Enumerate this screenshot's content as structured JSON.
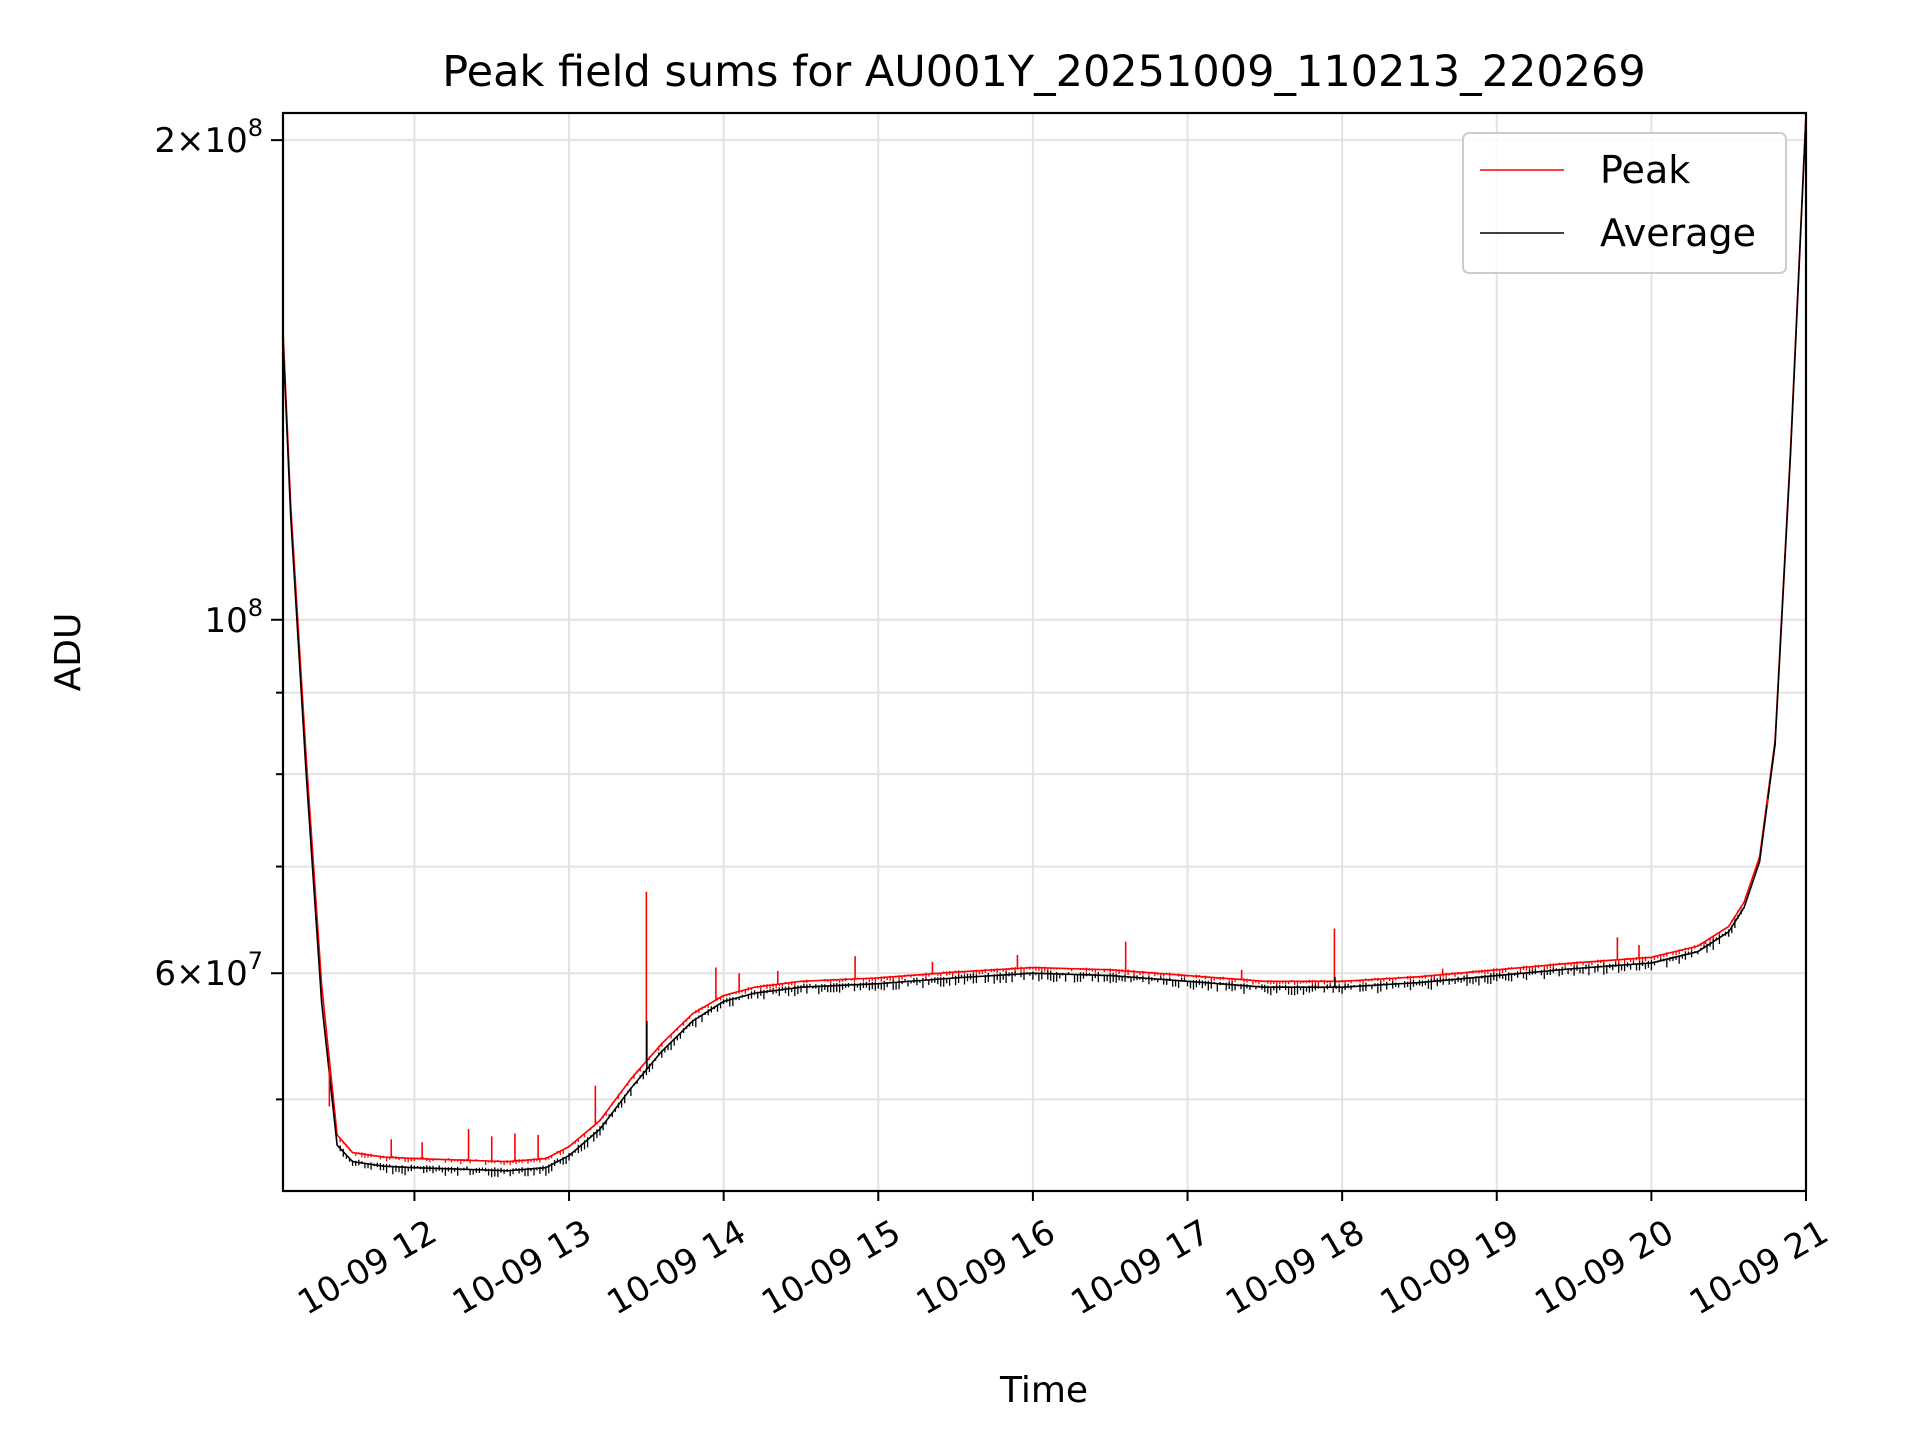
{
  "chart_data": {
    "type": "line",
    "title": "Peak field sums for AU001Y_20251009_110213_220269",
    "xlabel": "Time",
    "ylabel": "ADU",
    "yscale": "log",
    "x_units": "hours since 10-09 00:00",
    "xlim": [
      11.15,
      21.0
    ],
    "ylim": [
      43800000,
      208000000
    ],
    "grid": true,
    "legend_position": "top-right",
    "x_ticks": [
      {
        "value": 12,
        "label": "10-09 12"
      },
      {
        "value": 13,
        "label": "10-09 13"
      },
      {
        "value": 14,
        "label": "10-09 14"
      },
      {
        "value": 15,
        "label": "10-09 15"
      },
      {
        "value": 16,
        "label": "10-09 16"
      },
      {
        "value": 17,
        "label": "10-09 17"
      },
      {
        "value": 18,
        "label": "10-09 18"
      },
      {
        "value": 19,
        "label": "10-09 19"
      },
      {
        "value": 20,
        "label": "10-09 20"
      },
      {
        "value": 21,
        "label": "10-09 21"
      }
    ],
    "y_major_ticks": [
      {
        "value": 60000000,
        "base": "6",
        "times": "×",
        "ten": "10",
        "exp": "7"
      },
      {
        "value": 100000000,
        "base": "",
        "times": "",
        "ten": "10",
        "exp": "8"
      },
      {
        "value": 200000000,
        "base": "2",
        "times": "×",
        "ten": "10",
        "exp": "8"
      }
    ],
    "y_minor_ticks": [
      50000000,
      70000000,
      80000000,
      90000000
    ],
    "series": [
      {
        "name": "Peak",
        "color": "#ff0000",
        "x": [
          11.15,
          11.2,
          11.3,
          11.4,
          11.5,
          11.6,
          11.8,
          12.0,
          12.3,
          12.6,
          12.85,
          13.0,
          13.2,
          13.4,
          13.6,
          13.8,
          14.0,
          14.2,
          14.5,
          15.0,
          15.5,
          16.0,
          16.5,
          17.0,
          17.5,
          18.0,
          18.5,
          19.0,
          19.5,
          20.0,
          20.3,
          20.5,
          20.6,
          20.7,
          20.8,
          20.9,
          21.0
        ],
        "values": [
          152000000,
          118000000,
          82000000,
          59000000,
          47500000,
          46300000,
          46000000,
          45900000,
          45800000,
          45700000,
          45900000,
          46700000,
          48500000,
          51500000,
          54200000,
          56600000,
          58100000,
          58800000,
          59300000,
          59600000,
          60100000,
          60500000,
          60300000,
          59800000,
          59300000,
          59300000,
          59700000,
          60300000,
          60900000,
          61400000,
          62400000,
          64200000,
          66500000,
          71000000,
          84000000,
          128000000,
          208000000
        ]
      },
      {
        "name": "Average",
        "color": "#000000",
        "x": [
          11.15,
          11.2,
          11.3,
          11.4,
          11.5,
          11.6,
          11.8,
          12.0,
          12.3,
          12.6,
          12.85,
          13.0,
          13.2,
          13.4,
          13.6,
          13.8,
          14.0,
          14.2,
          14.5,
          15.0,
          15.5,
          16.0,
          16.5,
          17.0,
          17.5,
          18.0,
          18.5,
          19.0,
          19.5,
          20.0,
          20.3,
          20.5,
          20.6,
          20.7,
          20.8,
          20.9,
          21.0
        ],
        "values": [
          150000000,
          116000000,
          80000000,
          57500000,
          46800000,
          45700000,
          45400000,
          45300000,
          45200000,
          45100000,
          45300000,
          46100000,
          47900000,
          50800000,
          53600000,
          56000000,
          57600000,
          58300000,
          58800000,
          59100000,
          59600000,
          60000000,
          59800000,
          59300000,
          58800000,
          58800000,
          59200000,
          59800000,
          60400000,
          60900000,
          61900000,
          63700000,
          66000000,
          70500000,
          83500000,
          127000000,
          207000000
        ]
      }
    ],
    "spikes": [
      {
        "x": 11.45,
        "values": [
          49500000
        ]
      },
      {
        "x": 11.85,
        "values": [
          47200000
        ]
      },
      {
        "x": 12.05,
        "values": [
          47000000
        ]
      },
      {
        "x": 12.35,
        "values": [
          47900000
        ]
      },
      {
        "x": 12.5,
        "values": [
          47400000
        ]
      },
      {
        "x": 12.65,
        "values": [
          47600000
        ]
      },
      {
        "x": 12.8,
        "values": [
          47500000
        ]
      },
      {
        "x": 13.17,
        "values": [
          51000000
        ]
      },
      {
        "x": 13.5,
        "values": [
          67500000,
          56000000
        ]
      },
      {
        "x": 13.95,
        "values": [
          60500000
        ]
      },
      {
        "x": 14.1,
        "values": [
          60000000
        ]
      },
      {
        "x": 14.35,
        "values": [
          60200000
        ]
      },
      {
        "x": 14.85,
        "values": [
          61500000
        ]
      },
      {
        "x": 15.35,
        "values": [
          61000000
        ]
      },
      {
        "x": 15.9,
        "values": [
          61600000
        ]
      },
      {
        "x": 16.6,
        "values": [
          62800000
        ]
      },
      {
        "x": 17.35,
        "values": [
          60300000
        ]
      },
      {
        "x": 17.95,
        "values": [
          64000000,
          59700000
        ]
      },
      {
        "x": 18.65,
        "values": [
          60400000
        ]
      },
      {
        "x": 19.78,
        "values": [
          63200000
        ]
      },
      {
        "x": 19.92,
        "values": [
          62500000
        ]
      },
      {
        "x": 20.35,
        "values": [
          62600000
        ]
      },
      {
        "x": 20.75,
        "values": [
          76500000
        ]
      },
      {
        "x": 20.8,
        "values": [
          84000000
        ]
      }
    ]
  }
}
